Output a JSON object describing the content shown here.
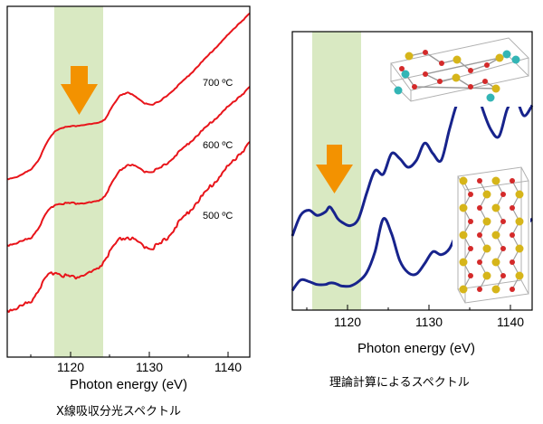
{
  "chart_data": [
    {
      "type": "line",
      "xlabel": "Photon energy (eV)",
      "x_ticks": [
        "1120",
        "1130",
        "1140"
      ],
      "xlim": [
        1114.5,
        1145.5
      ],
      "highlight_band": [
        1120.2,
        1126.6
      ],
      "caption": "X線吸収分光スペクトル",
      "series": [
        {
          "name": "700 ºC",
          "color": "#e8141a",
          "x": [
            1114.5,
            1116,
            1117.5,
            1118.5,
            1119.5,
            1120.5,
            1121.5,
            1123,
            1124.5,
            1126,
            1127,
            1128,
            1129,
            1130,
            1131,
            1132,
            1133,
            1134,
            1135,
            1136,
            1138,
            1140,
            1142,
            1144,
            1145.5
          ],
          "y": [
            -0.02,
            0.0,
            0.05,
            0.12,
            0.24,
            0.33,
            0.36,
            0.37,
            0.38,
            0.39,
            0.42,
            0.52,
            0.6,
            0.62,
            0.58,
            0.54,
            0.53,
            0.55,
            0.6,
            0.65,
            0.76,
            0.88,
            1.0,
            1.12,
            1.2
          ]
        },
        {
          "name": "600 ºC",
          "color": "#e8141a",
          "x": [
            1114.5,
            1116,
            1117.5,
            1118.5,
            1119.5,
            1120.5,
            1121.5,
            1123,
            1124.5,
            1126,
            1127,
            1128,
            1129,
            1130,
            1131,
            1132,
            1133,
            1134,
            1135,
            1136,
            1138,
            1140,
            1142,
            1144,
            1145.5
          ],
          "y": [
            -0.02,
            0.0,
            0.03,
            0.1,
            0.2,
            0.26,
            0.27,
            0.27,
            0.27,
            0.28,
            0.32,
            0.42,
            0.5,
            0.54,
            0.52,
            0.49,
            0.49,
            0.51,
            0.55,
            0.6,
            0.7,
            0.8,
            0.9,
            1.0,
            1.07
          ]
        },
        {
          "name": "500 ºC",
          "color": "#e8141a",
          "x": [
            1114.5,
            1116,
            1117.5,
            1118.5,
            1119.5,
            1120.5,
            1121.5,
            1123,
            1124.5,
            1126,
            1127,
            1128,
            1129,
            1130,
            1131,
            1132,
            1133,
            1134,
            1135,
            1136,
            1138,
            1140,
            1142,
            1144,
            1145.5
          ],
          "y": [
            -0.02,
            0.0,
            0.04,
            0.12,
            0.2,
            0.24,
            0.22,
            0.2,
            0.22,
            0.25,
            0.32,
            0.4,
            0.46,
            0.47,
            0.44,
            0.41,
            0.4,
            0.42,
            0.47,
            0.54,
            0.66,
            0.78,
            0.9,
            1.02,
            1.1
          ]
        }
      ]
    },
    {
      "type": "line",
      "xlabel": "Photon energy (eV)",
      "x_ticks": [
        "1120",
        "1130",
        "1140"
      ],
      "xlim": [
        1114,
        1143
      ],
      "highlight_band": [
        1115.5,
        1121.5
      ],
      "caption": "理論計算によるスペクトル",
      "series": [
        {
          "name": "",
          "color": "#17238c",
          "x": [
            1114,
            1115,
            1116,
            1117,
            1118,
            1118.5,
            1119,
            1119.5,
            1120,
            1121,
            1122,
            1123,
            1124,
            1125,
            1126,
            1127,
            1128,
            1129,
            1130,
            1131,
            1132,
            1133,
            1134,
            1135,
            1136,
            1137,
            1138,
            1139,
            1140,
            1141,
            1142,
            1143
          ],
          "y": [
            0.1,
            0.22,
            0.25,
            0.22,
            0.24,
            0.27,
            0.24,
            0.2,
            0.18,
            0.16,
            0.2,
            0.35,
            0.48,
            0.46,
            0.58,
            0.55,
            0.5,
            0.54,
            0.64,
            0.58,
            0.54,
            0.72,
            0.88,
            0.92,
            1.0,
            0.84,
            0.72,
            0.68,
            0.84,
            0.9,
            0.8,
            0.86
          ]
        },
        {
          "name": "",
          "color": "#17238c",
          "x": [
            1114,
            1115,
            1116,
            1117,
            1118,
            1118.5,
            1119,
            1119.5,
            1120,
            1121,
            1122,
            1123,
            1124,
            1125,
            1126,
            1127,
            1128,
            1129,
            1130,
            1131,
            1132,
            1133,
            1134,
            1135,
            1136,
            1137,
            1138,
            1139,
            1140,
            1141,
            1142,
            1143
          ],
          "y": [
            -0.02,
            0.05,
            0.04,
            0.02,
            0.02,
            0.03,
            0.03,
            0.02,
            0.01,
            0.01,
            0.04,
            0.1,
            0.24,
            0.46,
            0.36,
            0.18,
            0.1,
            0.09,
            0.16,
            0.24,
            0.22,
            0.26,
            0.38,
            0.46,
            0.44,
            0.34,
            0.26,
            0.32,
            0.44,
            0.5,
            0.42,
            0.46
          ]
        }
      ]
    }
  ]
}
